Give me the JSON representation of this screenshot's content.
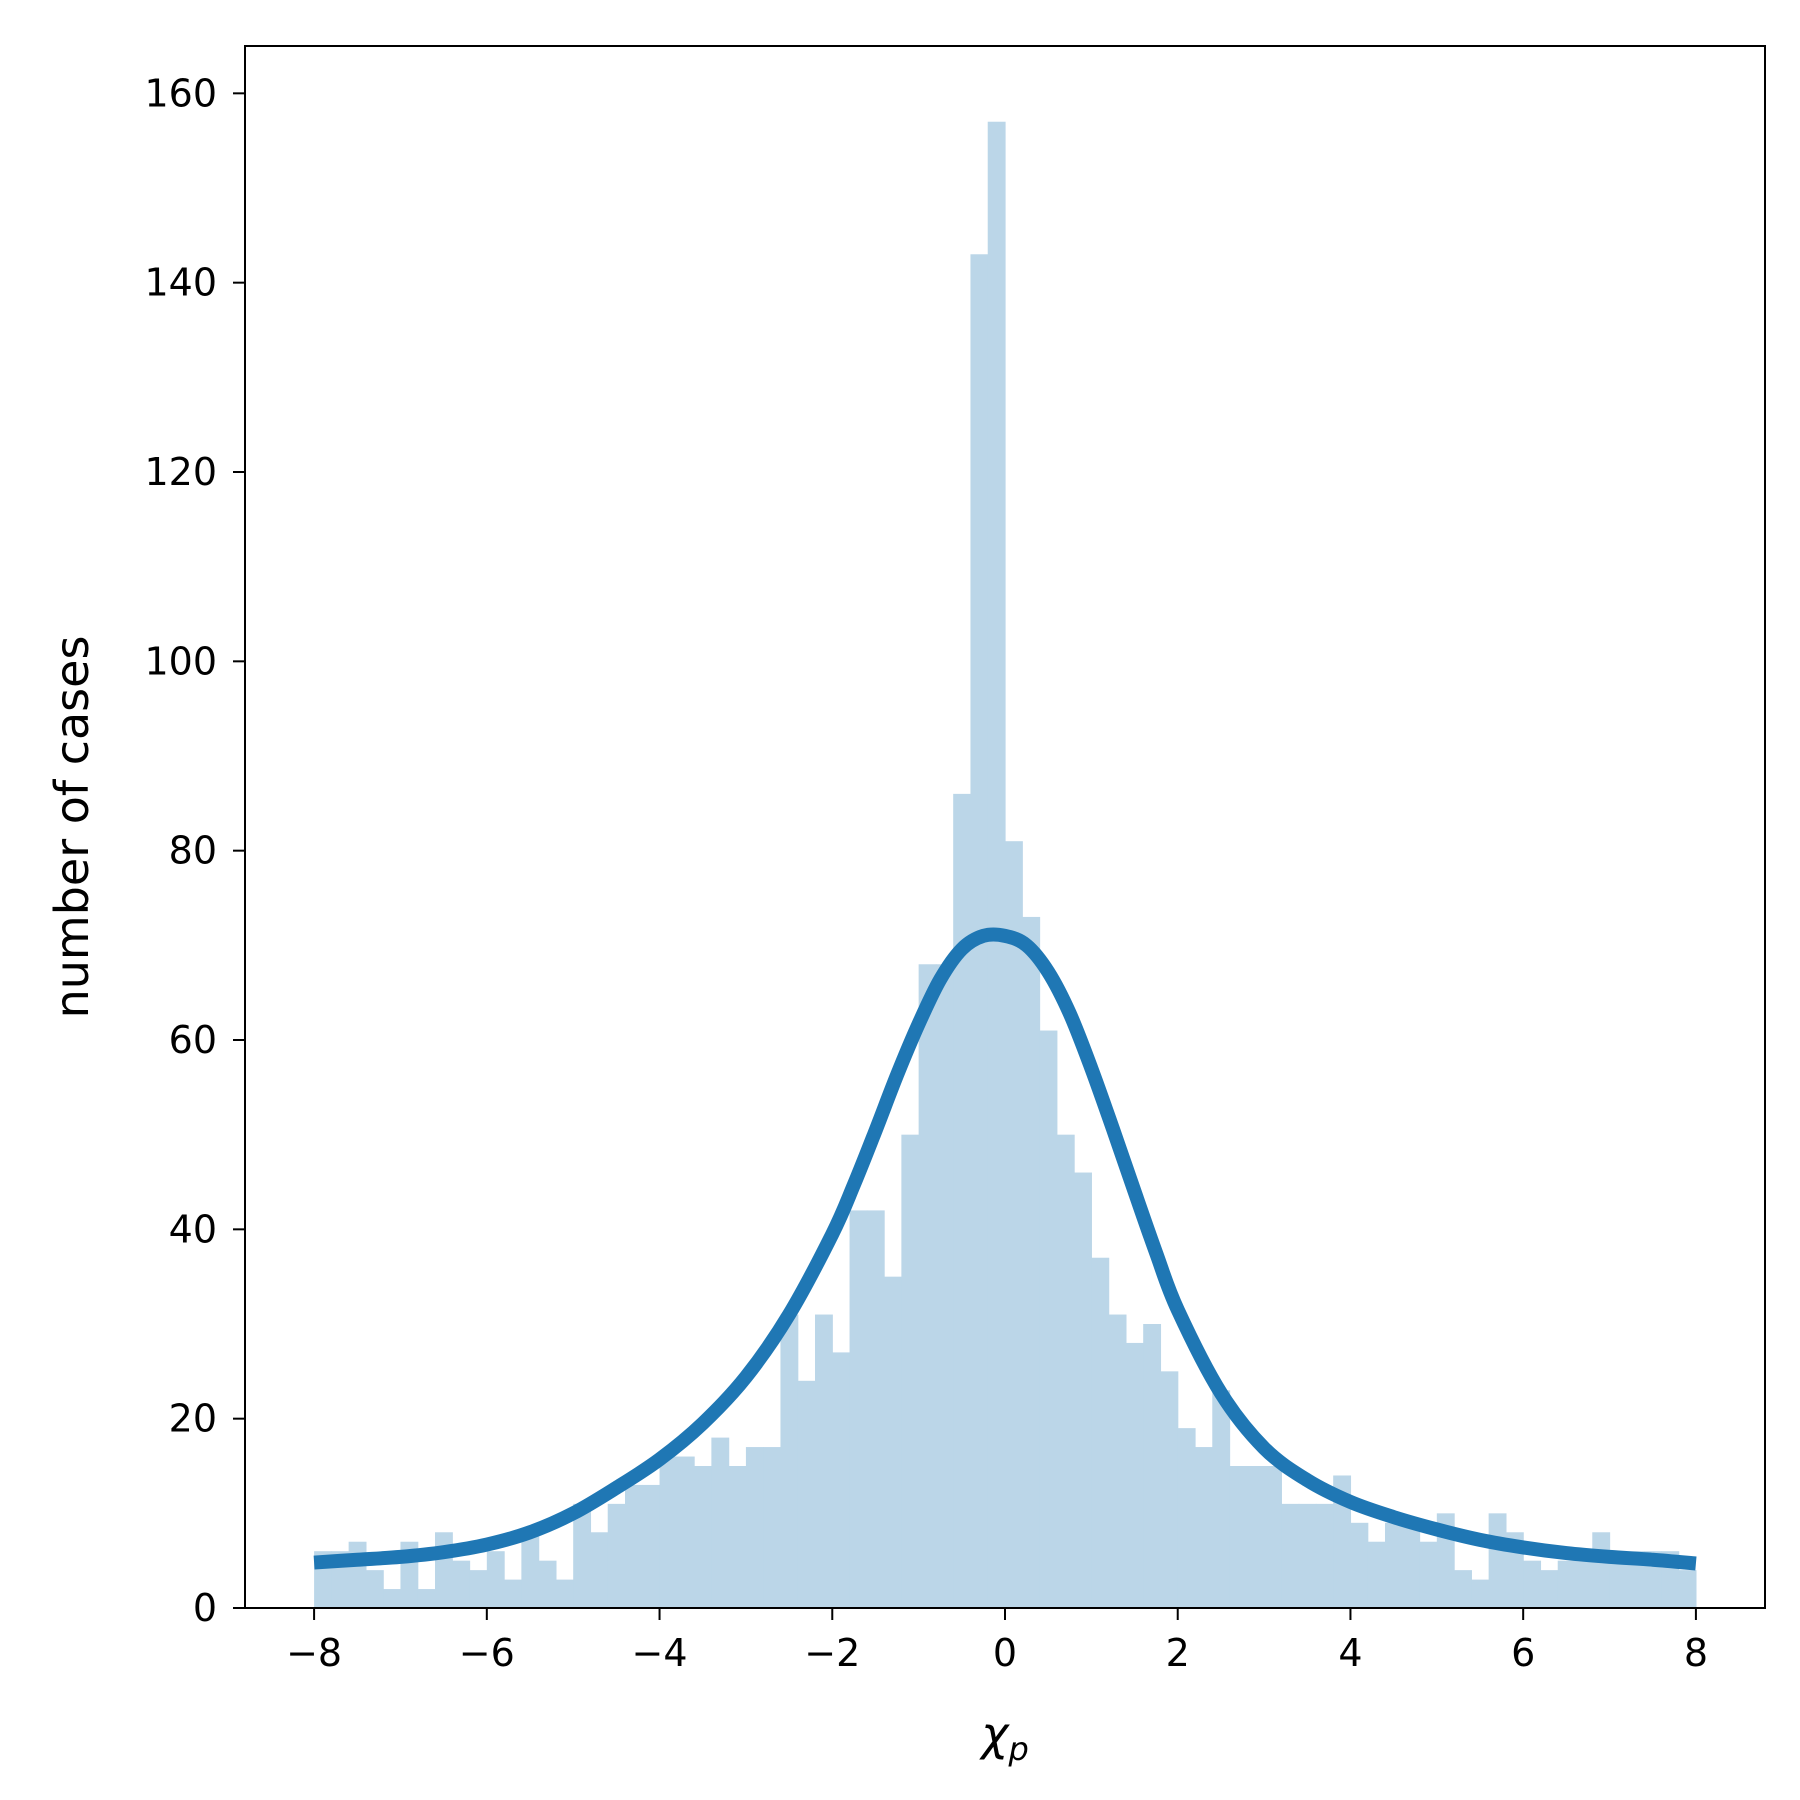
{
  "chart_data": {
    "type": "bar",
    "xlabel": "χ",
    "xlabel_sub": "p",
    "ylabel": "number of cases",
    "xlim": [
      -8.8,
      8.8
    ],
    "ylim": [
      0,
      165
    ],
    "xticks": [
      -8,
      -6,
      -4,
      -2,
      0,
      2,
      4,
      6,
      8
    ],
    "xtick_labels": [
      "−8",
      "−6",
      "−4",
      "−2",
      "0",
      "2",
      "4",
      "6",
      "8"
    ],
    "yticks": [
      0,
      20,
      40,
      60,
      80,
      100,
      120,
      140,
      160
    ],
    "ytick_labels": [
      "0",
      "20",
      "40",
      "60",
      "80",
      "100",
      "120",
      "140",
      "160"
    ],
    "grid": false,
    "bin_edges_start": -8,
    "bin_width": 0.2,
    "counts": [
      6,
      6,
      7,
      4,
      2,
      7,
      2,
      8,
      5,
      4,
      6,
      3,
      8,
      5,
      3,
      11,
      8,
      11,
      13,
      13,
      16,
      16,
      15,
      18,
      15,
      17,
      17,
      31,
      24,
      31,
      27,
      42,
      42,
      35,
      50,
      68,
      68,
      86,
      143,
      157,
      81,
      73,
      61,
      50,
      46,
      37,
      31,
      28,
      30,
      25,
      19,
      17,
      23,
      15,
      15,
      15,
      11,
      11,
      11,
      14,
      9,
      7,
      9,
      9,
      7,
      10,
      4,
      3,
      10,
      8,
      5,
      4,
      5,
      6,
      8,
      5,
      6,
      6,
      6,
      4
    ],
    "curve": {
      "type": "fit",
      "x": [
        -8,
        -7.5,
        -7,
        -6.5,
        -6,
        -5.5,
        -5,
        -4.5,
        -4,
        -3.5,
        -3,
        -2.5,
        -2,
        -1.75,
        -1.5,
        -1.25,
        -1,
        -0.75,
        -0.5,
        -0.25,
        0,
        0.25,
        0.5,
        0.75,
        1,
        1.25,
        1.5,
        1.75,
        2,
        2.5,
        3,
        3.5,
        4,
        4.5,
        5,
        5.5,
        6,
        6.5,
        7,
        7.5,
        8
      ],
      "y": [
        4.8,
        5.1,
        5.4,
        5.9,
        6.7,
        8.0,
        10.0,
        12.7,
        15.7,
        19.5,
        24.4,
        31.0,
        39.5,
        44.7,
        50.4,
        56.3,
        61.7,
        66.4,
        69.6,
        71.0,
        71.0,
        70.0,
        67.2,
        62.8,
        57.0,
        50.6,
        44.0,
        37.5,
        31.5,
        22.7,
        16.9,
        13.5,
        11.2,
        9.6,
        8.3,
        7.2,
        6.4,
        5.8,
        5.4,
        5.1,
        4.7
      ]
    },
    "colors": {
      "bars": "#bbd6e8",
      "curve": "#1f77b4",
      "axes": "#000000"
    }
  }
}
